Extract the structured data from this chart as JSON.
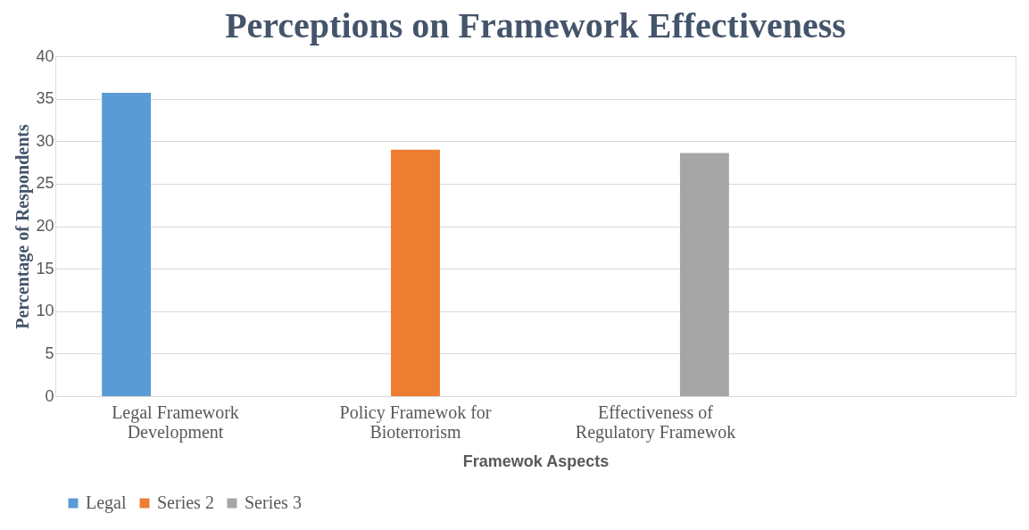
{
  "chart_data": {
    "type": "bar",
    "title": "Perceptions on Framework Effectiveness",
    "xlabel": "Framewok Aspects",
    "ylabel": "Percentage of Respondents",
    "categories": [
      "Legal Framework\nDevelopment",
      "Policy Framewok for\nBioterrorism",
      "Effectiveness of\nRegulatory Framewok",
      null
    ],
    "series": [
      {
        "name": "Legal",
        "color": "#5b9bd5",
        "values": [
          35.7,
          null,
          null,
          null
        ]
      },
      {
        "name": "Series 2",
        "color": "#ed7d31",
        "values": [
          null,
          29.0,
          null,
          null
        ]
      },
      {
        "name": "Series 3",
        "color": "#a5a5a5",
        "values": [
          null,
          null,
          28.6,
          null
        ]
      }
    ],
    "ylim": [
      0,
      40
    ],
    "yticks": [
      0,
      5,
      10,
      15,
      20,
      25,
      30,
      35,
      40
    ],
    "grid": "y",
    "legend": "bottom"
  }
}
